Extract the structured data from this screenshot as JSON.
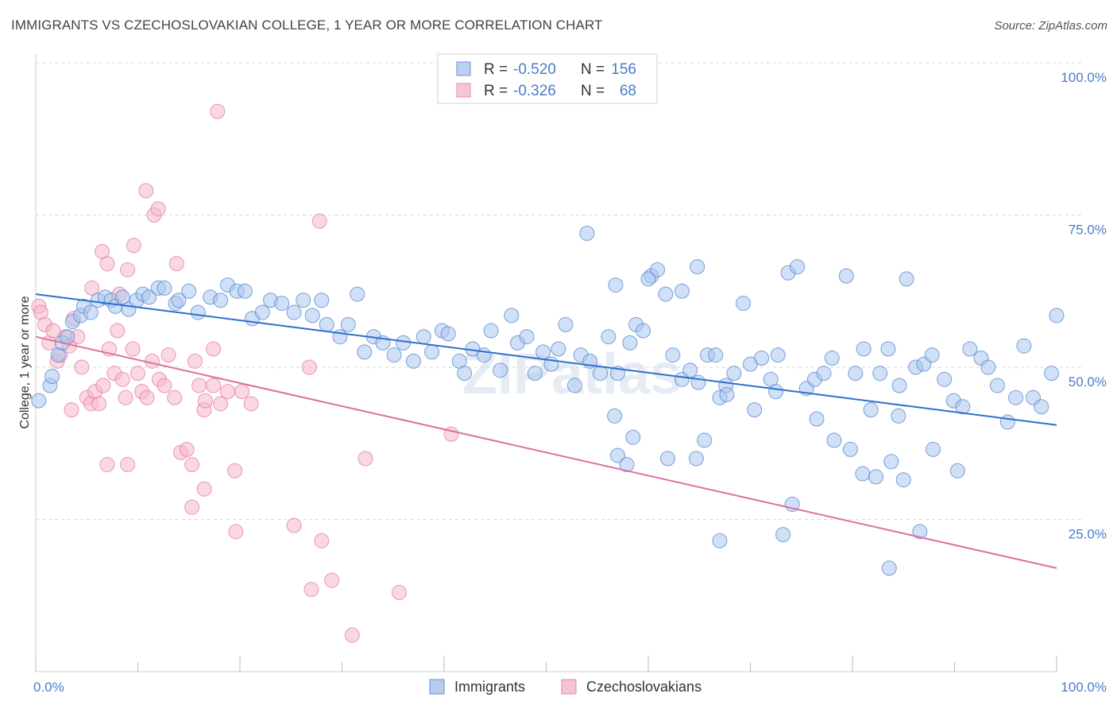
{
  "title": "IMMIGRANTS VS CZECHOSLOVAKIAN COLLEGE, 1 YEAR OR MORE CORRELATION CHART",
  "source": "Source: ZipAtlas.com",
  "watermark": "ZIPatlas",
  "colors": {
    "blue": "#4a7cc9",
    "blue_fill": "#a9c6ee",
    "blue_line": "#2f6fce",
    "pink_fill": "#f6b8cb",
    "pink_line": "#e0709a",
    "grid": "#d8d8d8"
  },
  "legend": {
    "rows": [
      {
        "r_label": "R =",
        "r_value": "-0.520",
        "n_label": "N =",
        "n_value": "156"
      },
      {
        "r_label": "R =",
        "r_value": "-0.326",
        "n_label": "N =",
        "n_value": "68"
      }
    ]
  },
  "bottom_legend": [
    "Immigrants",
    "Czechoslovakians"
  ],
  "chart_data": {
    "type": "scatter",
    "ylabel": "College, 1 year or more",
    "xlim": [
      0,
      100
    ],
    "ylim": [
      0,
      100
    ],
    "x_tick_labels": [
      "0.0%",
      "100.0%"
    ],
    "y_ticks": [
      {
        "value": 100,
        "label": "100.0%"
      },
      {
        "value": 75,
        "label": "75.0%"
      },
      {
        "value": 50,
        "label": "50.0%"
      },
      {
        "value": 25,
        "label": "25.0%"
      }
    ],
    "grid": true,
    "legend_placement": "top-center",
    "series": [
      {
        "name": "Immigrants",
        "trend": {
          "x": [
            0,
            100
          ],
          "y": [
            62.0,
            40.5
          ]
        },
        "points": [
          [
            0.3,
            44.5
          ],
          [
            1.4,
            47
          ],
          [
            1.6,
            48.5
          ],
          [
            2.2,
            52
          ],
          [
            2.6,
            54
          ],
          [
            3.1,
            55
          ],
          [
            3.6,
            57.5
          ],
          [
            4.4,
            58.5
          ],
          [
            4.7,
            60
          ],
          [
            5.4,
            59
          ],
          [
            6.1,
            61
          ],
          [
            6.8,
            61.5
          ],
          [
            7.4,
            61
          ],
          [
            7.8,
            60
          ],
          [
            8.5,
            61.5
          ],
          [
            9.1,
            59.5
          ],
          [
            9.9,
            61
          ],
          [
            10.5,
            62
          ],
          [
            11.1,
            61.5
          ],
          [
            12.0,
            63
          ],
          [
            12.6,
            63
          ],
          [
            13.7,
            60.5
          ],
          [
            14.0,
            61
          ],
          [
            15.0,
            62.5
          ],
          [
            15.9,
            59
          ],
          [
            17.1,
            61.5
          ],
          [
            18.1,
            61
          ],
          [
            18.8,
            63.5
          ],
          [
            19.7,
            62.5
          ],
          [
            20.5,
            62.5
          ],
          [
            21.2,
            58
          ],
          [
            22.2,
            59
          ],
          [
            23.0,
            61
          ],
          [
            24.1,
            60.5
          ],
          [
            25.3,
            59
          ],
          [
            26.2,
            61
          ],
          [
            27.1,
            58.5
          ],
          [
            28.0,
            61
          ],
          [
            28.5,
            57
          ],
          [
            29.8,
            55
          ],
          [
            30.6,
            57
          ],
          [
            31.5,
            62
          ],
          [
            32.2,
            52.5
          ],
          [
            33.1,
            55
          ],
          [
            34.0,
            54
          ],
          [
            35.1,
            52
          ],
          [
            36.0,
            54
          ],
          [
            37.0,
            51
          ],
          [
            38.0,
            55
          ],
          [
            38.8,
            52.5
          ],
          [
            39.8,
            56
          ],
          [
            40.4,
            55.5
          ],
          [
            41.5,
            51
          ],
          [
            42.0,
            49
          ],
          [
            42.8,
            53
          ],
          [
            43.9,
            52
          ],
          [
            44.6,
            56
          ],
          [
            45.5,
            49.5
          ],
          [
            46.6,
            58.5
          ],
          [
            47.2,
            54
          ],
          [
            48.1,
            55
          ],
          [
            48.9,
            49
          ],
          [
            49.7,
            52.5
          ],
          [
            50.5,
            50.5
          ],
          [
            51.2,
            53
          ],
          [
            51.9,
            57
          ],
          [
            52.8,
            47
          ],
          [
            53.4,
            52
          ],
          [
            54.3,
            51
          ],
          [
            55.3,
            49
          ],
          [
            56.1,
            55
          ],
          [
            57.0,
            49
          ],
          [
            58.2,
            54
          ],
          [
            58.8,
            57
          ],
          [
            59.5,
            56
          ],
          [
            60.3,
            65
          ],
          [
            60.9,
            66
          ],
          [
            61.7,
            62
          ],
          [
            62.4,
            52
          ],
          [
            63.3,
            48
          ],
          [
            64.1,
            49.5
          ],
          [
            64.9,
            47.5
          ],
          [
            65.8,
            52
          ],
          [
            66.6,
            52
          ],
          [
            67.6,
            47
          ],
          [
            68.4,
            49
          ],
          [
            69.3,
            60.5
          ],
          [
            70.0,
            50.5
          ],
          [
            71.1,
            51.5
          ],
          [
            72.0,
            48
          ],
          [
            72.7,
            52
          ],
          [
            73.7,
            65.5
          ],
          [
            74.6,
            66.5
          ],
          [
            75.5,
            46.5
          ],
          [
            76.3,
            48
          ],
          [
            77.2,
            49
          ],
          [
            78.0,
            51.5
          ],
          [
            79.4,
            65
          ],
          [
            80.3,
            49
          ],
          [
            81.1,
            53
          ],
          [
            81.8,
            43
          ],
          [
            82.7,
            49
          ],
          [
            83.5,
            53
          ],
          [
            84.6,
            47
          ],
          [
            85.3,
            64.5
          ],
          [
            86.2,
            50
          ],
          [
            87.0,
            50.5
          ],
          [
            87.8,
            52
          ],
          [
            89.0,
            48
          ],
          [
            89.9,
            44.5
          ],
          [
            90.8,
            43.5
          ],
          [
            91.5,
            53
          ],
          [
            92.6,
            51.5
          ],
          [
            93.3,
            50
          ],
          [
            94.2,
            47
          ],
          [
            95.2,
            41
          ],
          [
            96.0,
            45
          ],
          [
            96.8,
            53.5
          ],
          [
            97.7,
            45
          ],
          [
            98.5,
            43.5
          ],
          [
            99.5,
            49
          ],
          [
            100.0,
            58.5
          ],
          [
            54.0,
            72
          ],
          [
            56.8,
            63.5
          ],
          [
            60.0,
            64.5
          ],
          [
            63.3,
            62.5
          ],
          [
            64.8,
            66.5
          ],
          [
            58.5,
            38.5
          ],
          [
            61.9,
            35
          ],
          [
            64.7,
            35
          ],
          [
            65.5,
            38
          ],
          [
            67.0,
            45
          ],
          [
            67.7,
            45.5
          ],
          [
            70.4,
            43
          ],
          [
            72.5,
            46
          ],
          [
            73.2,
            22.5
          ],
          [
            74.1,
            27.5
          ],
          [
            76.5,
            41.5
          ],
          [
            78.2,
            38
          ],
          [
            79.8,
            36.5
          ],
          [
            81.0,
            32.5
          ],
          [
            82.3,
            32
          ],
          [
            83.8,
            34.5
          ],
          [
            85.0,
            31.5
          ],
          [
            86.6,
            23
          ],
          [
            87.9,
            36.5
          ],
          [
            90.3,
            33
          ],
          [
            83.6,
            17
          ],
          [
            84.5,
            42
          ],
          [
            56.7,
            42
          ],
          [
            57.0,
            35.5
          ],
          [
            57.9,
            34
          ],
          [
            67.0,
            21.5
          ]
        ]
      },
      {
        "name": "Czechoslovakians",
        "trend": {
          "x": [
            0,
            100
          ],
          "y": [
            55.0,
            17.0
          ]
        },
        "points": [
          [
            0.3,
            60
          ],
          [
            0.5,
            59
          ],
          [
            0.9,
            57
          ],
          [
            1.3,
            54
          ],
          [
            1.7,
            56
          ],
          [
            2.1,
            51
          ],
          [
            2.4,
            52
          ],
          [
            2.9,
            55
          ],
          [
            3.3,
            53.5
          ],
          [
            3.7,
            58
          ],
          [
            4.1,
            55
          ],
          [
            4.5,
            50
          ],
          [
            5.0,
            45
          ],
          [
            5.4,
            44
          ],
          [
            5.8,
            46
          ],
          [
            6.2,
            44
          ],
          [
            6.6,
            47
          ],
          [
            7.2,
            53
          ],
          [
            7.7,
            49
          ],
          [
            8.0,
            56
          ],
          [
            8.5,
            48
          ],
          [
            8.8,
            45
          ],
          [
            9.5,
            53
          ],
          [
            10.0,
            49
          ],
          [
            10.4,
            46
          ],
          [
            10.9,
            45
          ],
          [
            11.4,
            51
          ],
          [
            12.1,
            48
          ],
          [
            12.6,
            47
          ],
          [
            13.0,
            52
          ],
          [
            13.6,
            45
          ],
          [
            14.2,
            36
          ],
          [
            14.8,
            36.5
          ],
          [
            15.3,
            34
          ],
          [
            16.0,
            47
          ],
          [
            16.5,
            43
          ],
          [
            17.4,
            47
          ],
          [
            18.1,
            44
          ],
          [
            18.8,
            46
          ],
          [
            19.5,
            33
          ],
          [
            20.2,
            46
          ],
          [
            21.1,
            44
          ],
          [
            3.5,
            43
          ],
          [
            5.5,
            63
          ],
          [
            6.5,
            69
          ],
          [
            7.0,
            67
          ],
          [
            8.2,
            62
          ],
          [
            9.0,
            66
          ],
          [
            9.6,
            70
          ],
          [
            10.8,
            79
          ],
          [
            11.6,
            75
          ],
          [
            12.0,
            76
          ],
          [
            13.8,
            67
          ],
          [
            15.6,
            51
          ],
          [
            16.6,
            44.5
          ],
          [
            17.4,
            53
          ],
          [
            17.8,
            92
          ],
          [
            15.3,
            27
          ],
          [
            16.5,
            30
          ],
          [
            19.6,
            23
          ],
          [
            25.3,
            24
          ],
          [
            27.8,
            74
          ],
          [
            26.8,
            50
          ],
          [
            27.0,
            13.5
          ],
          [
            28.0,
            21.5
          ],
          [
            29.0,
            15
          ],
          [
            31.0,
            6
          ],
          [
            35.6,
            13
          ],
          [
            32.3,
            35
          ],
          [
            40.7,
            39
          ],
          [
            7.0,
            34
          ],
          [
            9.0,
            34
          ]
        ]
      }
    ]
  }
}
